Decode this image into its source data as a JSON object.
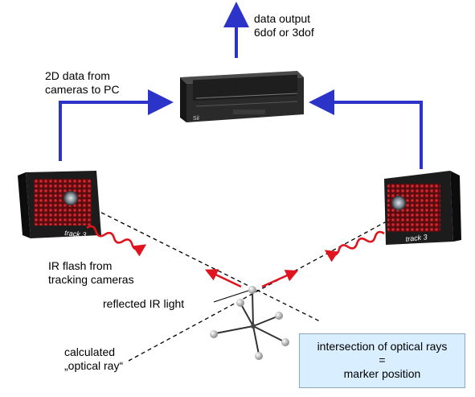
{
  "labels": {
    "data_output": [
      "data output",
      "6dof or 3dof"
    ],
    "data_to_pc": [
      "2D data from",
      "cameras to PC"
    ],
    "ir_flash": [
      "IR flash from",
      "tracking cameras"
    ],
    "reflected": "reflected IR light",
    "optical_ray": [
      "calculated",
      "„optical ray“"
    ]
  },
  "info_box": [
    "intersection of optical rays",
    "=",
    "marker position"
  ],
  "devices": {
    "left_camera_brand": "track 3",
    "right_camera_brand": "track 3",
    "pc_brand": "Sil"
  },
  "colors": {
    "arrow_blue": "#2b33c8",
    "ir_red": "#e0141e",
    "info_box_bg": "#d9efff"
  }
}
